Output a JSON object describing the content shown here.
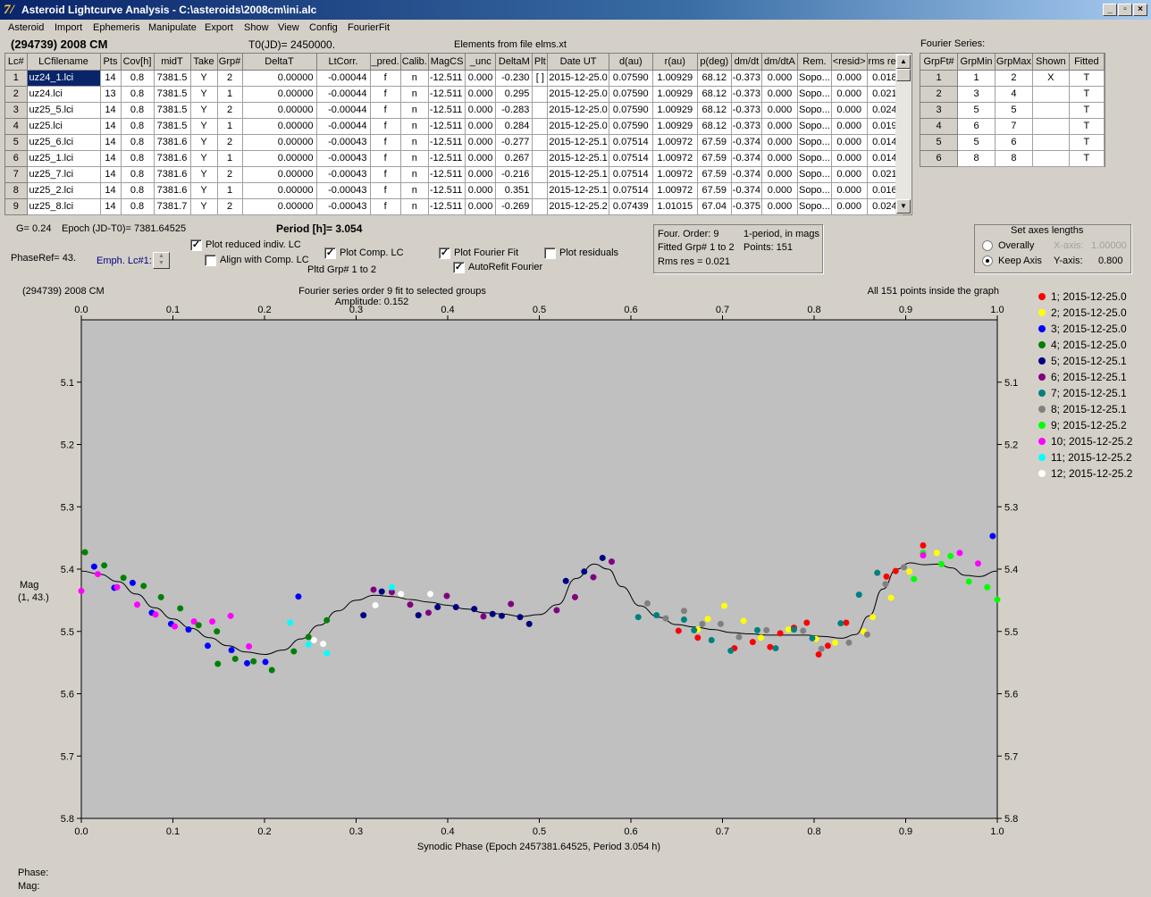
{
  "window": {
    "title": "Asteroid Lightcurve Analysis - C:\\asteroids\\2008cm\\ini.alc",
    "min": "_",
    "max": "▫",
    "close": "×"
  },
  "menu": [
    "Asteroid",
    "Import",
    "Ephemeris",
    "Manipulate",
    "Export",
    "Show",
    "View",
    "Config",
    "FourierFit"
  ],
  "info": {
    "asteroid": "(294739) 2008 CM",
    "t0": "T0(JD)= 2450000.",
    "elements": "Elements from file elms.xt",
    "fourier_title": "Fourier Series:"
  },
  "lc_table": {
    "headers": [
      "Lc#",
      "LCfilename",
      "Pts",
      "Cov[h]",
      "midT",
      "Take",
      "Grp#",
      "DeltaT",
      "LtCorr.",
      "_pred.",
      "Calib.",
      "MagCS",
      "_unc",
      "DeltaM",
      "Plt",
      "Date UT",
      "d(au)",
      "r(au)",
      "p(deg)",
      "dm/dt",
      "dm/dtA",
      "Rem.",
      "<resid>",
      "rms res"
    ],
    "rows": [
      [
        "1",
        "uz24_1.lci",
        "14",
        "0.8",
        "7381.5",
        "Y",
        "2",
        "0.00000",
        "-0.00044",
        "f",
        "n",
        "-12.511",
        "0.000",
        "-0.230",
        "[ ]",
        "2015-12-25.0",
        "0.07590",
        "1.00929",
        "68.12",
        "-0.373",
        "0.000",
        "Sopo...",
        "0.000",
        "0.018"
      ],
      [
        "2",
        "uz24.lci",
        "13",
        "0.8",
        "7381.5",
        "Y",
        "1",
        "0.00000",
        "-0.00044",
        "f",
        "n",
        "-12.511",
        "0.000",
        "0.295",
        "",
        "2015-12-25.0",
        "0.07590",
        "1.00929",
        "68.12",
        "-0.373",
        "0.000",
        "Sopo...",
        "0.000",
        "0.021"
      ],
      [
        "3",
        "uz25_5.lci",
        "14",
        "0.8",
        "7381.5",
        "Y",
        "2",
        "0.00000",
        "-0.00044",
        "f",
        "n",
        "-12.511",
        "0.000",
        "-0.283",
        "",
        "2015-12-25.0",
        "0.07590",
        "1.00929",
        "68.12",
        "-0.373",
        "0.000",
        "Sopo...",
        "0.000",
        "0.024"
      ],
      [
        "4",
        "uz25.lci",
        "14",
        "0.8",
        "7381.5",
        "Y",
        "1",
        "0.00000",
        "-0.00044",
        "f",
        "n",
        "-12.511",
        "0.000",
        "0.284",
        "",
        "2015-12-25.0",
        "0.07590",
        "1.00929",
        "68.12",
        "-0.373",
        "0.000",
        "Sopo...",
        "0.000",
        "0.019"
      ],
      [
        "5",
        "uz25_6.lci",
        "14",
        "0.8",
        "7381.6",
        "Y",
        "2",
        "0.00000",
        "-0.00043",
        "f",
        "n",
        "-12.511",
        "0.000",
        "-0.277",
        "",
        "2015-12-25.1",
        "0.07514",
        "1.00972",
        "67.59",
        "-0.374",
        "0.000",
        "Sopo...",
        "0.000",
        "0.014"
      ],
      [
        "6",
        "uz25_1.lci",
        "14",
        "0.8",
        "7381.6",
        "Y",
        "1",
        "0.00000",
        "-0.00043",
        "f",
        "n",
        "-12.511",
        "0.000",
        "0.267",
        "",
        "2015-12-25.1",
        "0.07514",
        "1.00972",
        "67.59",
        "-0.374",
        "0.000",
        "Sopo...",
        "0.000",
        "0.014"
      ],
      [
        "7",
        "uz25_7.lci",
        "14",
        "0.8",
        "7381.6",
        "Y",
        "2",
        "0.00000",
        "-0.00043",
        "f",
        "n",
        "-12.511",
        "0.000",
        "-0.216",
        "",
        "2015-12-25.1",
        "0.07514",
        "1.00972",
        "67.59",
        "-0.374",
        "0.000",
        "Sopo...",
        "0.000",
        "0.021"
      ],
      [
        "8",
        "uz25_2.lci",
        "14",
        "0.8",
        "7381.6",
        "Y",
        "1",
        "0.00000",
        "-0.00043",
        "f",
        "n",
        "-12.511",
        "0.000",
        "0.351",
        "",
        "2015-12-25.1",
        "0.07514",
        "1.00972",
        "67.59",
        "-0.374",
        "0.000",
        "Sopo...",
        "0.000",
        "0.016"
      ],
      [
        "9",
        "uz25_8.lci",
        "14",
        "0.8",
        "7381.7",
        "Y",
        "2",
        "0.00000",
        "-0.00043",
        "f",
        "n",
        "-12.511",
        "0.000",
        "-0.269",
        "",
        "2015-12-25.2",
        "0.07439",
        "1.01015",
        "67.04",
        "-0.375",
        "0.000",
        "Sopo...",
        "0.000",
        "0.024"
      ]
    ]
  },
  "fourier_table": {
    "headers": [
      "GrpFt#",
      "GrpMin",
      "GrpMax",
      "Shown",
      "Fitted"
    ],
    "rows": [
      [
        "1",
        "1",
        "2",
        "X",
        "T"
      ],
      [
        "2",
        "3",
        "4",
        "",
        "T"
      ],
      [
        "3",
        "5",
        "5",
        "",
        "T"
      ],
      [
        "4",
        "6",
        "7",
        "",
        "T"
      ],
      [
        "5",
        "5",
        "6",
        "",
        "T"
      ],
      [
        "6",
        "8",
        "8",
        "",
        "T"
      ]
    ]
  },
  "controls": {
    "g": "G= 0.24",
    "epoch": "Epoch (JD-T0)= 7381.64525",
    "period": "Period [h]= 3.054",
    "phaseref": "PhaseRef= 43.",
    "emph": "Emph. Lc#1:",
    "cb_reduced": "Plot reduced indiv. LC",
    "cb_align": "Align with Comp. LC",
    "cb_comp": "Plot Comp. LC",
    "pltd": "Pltd Grp#  1   to   2",
    "cb_fourier": "Plot Fourier Fit",
    "cb_autorefit": "AutoRefit Fourier",
    "cb_resid": "Plot residuals",
    "cb_reduced_checked": true,
    "cb_align_checked": false,
    "cb_comp_checked": true,
    "cb_fourier_checked": true,
    "cb_autorefit_checked": true,
    "cb_resid_checked": false
  },
  "fourier_info": {
    "order": "Four. Order:  9",
    "mode": "1-period, in mags",
    "fitted": "Fitted Grp# 1 to 2",
    "points": "Points: 151",
    "rms": "Rms res     = 0.021"
  },
  "axes_box": {
    "title": "Set axes lengths",
    "overally": "Overally",
    "keep": "Keep Axis",
    "xaxis_label": "X-axis:",
    "xaxis_val": "1.00000",
    "yaxis_label": "Y-axis:",
    "yaxis_val": "0.800",
    "selected": "keep"
  },
  "plot": {
    "left_title": "(294739) 2008 CM",
    "center_title": "Fourier series order 9 fit to selected groups",
    "amplitude": "Amplitude: 0.152",
    "right_note": "All 151 points inside the graph",
    "ylabel1": "Mag",
    "ylabel2": "(1, 43.)",
    "xlabel": "Synodic Phase (Epoch 2457381.64525, Period 3.054 h)",
    "status_phase": "Phase:",
    "status_mag": "Mag:"
  },
  "chart_data": {
    "type": "scatter",
    "title": "Fourier series order 9 fit to selected groups",
    "xlabel": "Synodic Phase (Epoch 2457381.64525, Period 3.054 h)",
    "ylabel": "Mag",
    "xlim": [
      0.0,
      1.0
    ],
    "ylim": [
      5.0,
      5.8
    ],
    "y_inverted": true,
    "xticks": [
      "0.0",
      "0.1",
      "0.2",
      "0.3",
      "0.4",
      "0.5",
      "0.6",
      "0.7",
      "0.8",
      "0.9",
      "1.0"
    ],
    "yticks": [
      "5.1",
      "5.2",
      "5.3",
      "5.4",
      "5.5",
      "5.6",
      "5.7",
      "5.8"
    ],
    "background": "#c0c0c0",
    "series": [
      {
        "name": "1; 2015-12-25.0",
        "color": "#ff0000",
        "points": [
          [
            0.652,
            5.499
          ],
          [
            0.673,
            5.51
          ],
          [
            0.713,
            5.527
          ],
          [
            0.733,
            5.517
          ],
          [
            0.752,
            5.525
          ],
          [
            0.763,
            5.503
          ],
          [
            0.778,
            5.494
          ],
          [
            0.792,
            5.486
          ],
          [
            0.805,
            5.537
          ],
          [
            0.815,
            5.523
          ],
          [
            0.835,
            5.486
          ],
          [
            0.879,
            5.412
          ],
          [
            0.889,
            5.403
          ],
          [
            0.919,
            5.362
          ]
        ]
      },
      {
        "name": "2; 2015-12-25.0",
        "color": "#ffff00",
        "points": [
          [
            0.673,
            5.497
          ],
          [
            0.684,
            5.48
          ],
          [
            0.702,
            5.459
          ],
          [
            0.723,
            5.483
          ],
          [
            0.742,
            5.51
          ],
          [
            0.772,
            5.497
          ],
          [
            0.802,
            5.512
          ],
          [
            0.823,
            5.518
          ],
          [
            0.854,
            5.5
          ],
          [
            0.864,
            5.477
          ],
          [
            0.884,
            5.446
          ],
          [
            0.904,
            5.404
          ],
          [
            0.934,
            5.374
          ]
        ]
      },
      {
        "name": "3; 2015-12-25.0",
        "color": "#0000ff",
        "points": [
          [
            0.014,
            5.396
          ],
          [
            0.036,
            5.43
          ],
          [
            0.056,
            5.422
          ],
          [
            0.077,
            5.47
          ],
          [
            0.098,
            5.488
          ],
          [
            0.117,
            5.497
          ],
          [
            0.138,
            5.523
          ],
          [
            0.164,
            5.53
          ],
          [
            0.181,
            5.551
          ],
          [
            0.201,
            5.549
          ],
          [
            0.237,
            5.444
          ],
          [
            0.995,
            5.347
          ]
        ]
      },
      {
        "name": "4; 2015-12-25.0",
        "color": "#008000",
        "points": [
          [
            0.004,
            5.373
          ],
          [
            0.025,
            5.394
          ],
          [
            0.046,
            5.414
          ],
          [
            0.068,
            5.427
          ],
          [
            0.087,
            5.445
          ],
          [
            0.108,
            5.463
          ],
          [
            0.128,
            5.49
          ],
          [
            0.148,
            5.5
          ],
          [
            0.149,
            5.552
          ],
          [
            0.168,
            5.544
          ],
          [
            0.188,
            5.548
          ],
          [
            0.208,
            5.562
          ],
          [
            0.232,
            5.532
          ],
          [
            0.248,
            5.509
          ],
          [
            0.268,
            5.482
          ]
        ]
      },
      {
        "name": "5; 2015-12-25.1",
        "color": "#000080",
        "points": [
          [
            0.308,
            5.474
          ],
          [
            0.328,
            5.436
          ],
          [
            0.368,
            5.474
          ],
          [
            0.389,
            5.461
          ],
          [
            0.409,
            5.461
          ],
          [
            0.429,
            5.464
          ],
          [
            0.449,
            5.472
          ],
          [
            0.459,
            5.475
          ],
          [
            0.479,
            5.477
          ],
          [
            0.489,
            5.488
          ],
          [
            0.529,
            5.419
          ],
          [
            0.549,
            5.404
          ],
          [
            0.569,
            5.382
          ]
        ]
      },
      {
        "name": "6; 2015-12-25.1",
        "color": "#800080",
        "points": [
          [
            0.319,
            5.433
          ],
          [
            0.339,
            5.437
          ],
          [
            0.359,
            5.457
          ],
          [
            0.379,
            5.47
          ],
          [
            0.399,
            5.443
          ],
          [
            0.439,
            5.476
          ],
          [
            0.469,
            5.456
          ],
          [
            0.519,
            5.466
          ],
          [
            0.539,
            5.445
          ],
          [
            0.559,
            5.413
          ],
          [
            0.579,
            5.388
          ]
        ]
      },
      {
        "name": "7; 2015-12-25.1",
        "color": "#008080",
        "points": [
          [
            0.608,
            5.477
          ],
          [
            0.628,
            5.474
          ],
          [
            0.658,
            5.481
          ],
          [
            0.669,
            5.498
          ],
          [
            0.688,
            5.514
          ],
          [
            0.709,
            5.531
          ],
          [
            0.738,
            5.498
          ],
          [
            0.758,
            5.527
          ],
          [
            0.778,
            5.497
          ],
          [
            0.798,
            5.511
          ],
          [
            0.829,
            5.487
          ],
          [
            0.849,
            5.441
          ],
          [
            0.869,
            5.406
          ]
        ]
      },
      {
        "name": "8; 2015-12-25.1",
        "color": "#808080",
        "points": [
          [
            0.618,
            5.455
          ],
          [
            0.638,
            5.479
          ],
          [
            0.658,
            5.467
          ],
          [
            0.678,
            5.488
          ],
          [
            0.698,
            5.488
          ],
          [
            0.718,
            5.509
          ],
          [
            0.748,
            5.498
          ],
          [
            0.788,
            5.499
          ],
          [
            0.808,
            5.528
          ],
          [
            0.838,
            5.518
          ],
          [
            0.858,
            5.505
          ],
          [
            0.878,
            5.424
          ],
          [
            0.898,
            5.397
          ]
        ]
      },
      {
        "name": "9; 2015-12-25.2",
        "color": "#00ff00",
        "points": [
          [
            0.919,
            5.374
          ],
          [
            0.939,
            5.392
          ],
          [
            0.949,
            5.379
          ],
          [
            0.969,
            5.42
          ],
          [
            0.989,
            5.429
          ],
          [
            1.0,
            5.449
          ],
          [
            0.909,
            5.416
          ]
        ]
      },
      {
        "name": "10; 2015-12-25.2",
        "color": "#ff00ff",
        "points": [
          [
            0.0,
            5.435
          ],
          [
            0.018,
            5.408
          ],
          [
            0.039,
            5.429
          ],
          [
            0.061,
            5.457
          ],
          [
            0.081,
            5.473
          ],
          [
            0.102,
            5.492
          ],
          [
            0.123,
            5.484
          ],
          [
            0.143,
            5.484
          ],
          [
            0.163,
            5.475
          ],
          [
            0.183,
            5.524
          ],
          [
            0.919,
            5.378
          ],
          [
            0.959,
            5.374
          ],
          [
            0.979,
            5.391
          ]
        ]
      },
      {
        "name": "11; 2015-12-25.2",
        "color": "#00ffff",
        "points": [
          [
            0.228,
            5.486
          ],
          [
            0.248,
            5.521
          ],
          [
            0.268,
            5.535
          ],
          [
            0.339,
            5.429
          ]
        ]
      },
      {
        "name": "12; 2015-12-25.2",
        "color": "#ffffff",
        "points": [
          [
            0.254,
            5.514
          ],
          [
            0.264,
            5.52
          ],
          [
            0.321,
            5.458
          ],
          [
            0.349,
            5.44
          ],
          [
            0.381,
            5.44
          ]
        ]
      }
    ],
    "fit_curve": [
      [
        0.0,
        5.403
      ],
      [
        0.02,
        5.408
      ],
      [
        0.04,
        5.42
      ],
      [
        0.06,
        5.44
      ],
      [
        0.08,
        5.462
      ],
      [
        0.1,
        5.48
      ],
      [
        0.12,
        5.495
      ],
      [
        0.14,
        5.51
      ],
      [
        0.16,
        5.523
      ],
      [
        0.18,
        5.533
      ],
      [
        0.2,
        5.537
      ],
      [
        0.22,
        5.53
      ],
      [
        0.24,
        5.512
      ],
      [
        0.26,
        5.49
      ],
      [
        0.28,
        5.467
      ],
      [
        0.3,
        5.45
      ],
      [
        0.32,
        5.442
      ],
      [
        0.34,
        5.444
      ],
      [
        0.36,
        5.449
      ],
      [
        0.38,
        5.453
      ],
      [
        0.4,
        5.458
      ],
      [
        0.42,
        5.464
      ],
      [
        0.44,
        5.47
      ],
      [
        0.46,
        5.472
      ],
      [
        0.48,
        5.476
      ],
      [
        0.5,
        5.473
      ],
      [
        0.52,
        5.457
      ],
      [
        0.54,
        5.415
      ],
      [
        0.56,
        5.392
      ],
      [
        0.575,
        5.4
      ],
      [
        0.59,
        5.428
      ],
      [
        0.61,
        5.459
      ],
      [
        0.63,
        5.477
      ],
      [
        0.65,
        5.489
      ],
      [
        0.67,
        5.493
      ],
      [
        0.69,
        5.497
      ],
      [
        0.71,
        5.502
      ],
      [
        0.73,
        5.504
      ],
      [
        0.75,
        5.506
      ],
      [
        0.77,
        5.506
      ],
      [
        0.79,
        5.506
      ],
      [
        0.81,
        5.508
      ],
      [
        0.83,
        5.511
      ],
      [
        0.845,
        5.505
      ],
      [
        0.86,
        5.475
      ],
      [
        0.875,
        5.432
      ],
      [
        0.89,
        5.4
      ],
      [
        0.905,
        5.39
      ],
      [
        0.92,
        5.393
      ],
      [
        0.935,
        5.392
      ],
      [
        0.95,
        5.398
      ],
      [
        0.965,
        5.41
      ],
      [
        0.98,
        5.412
      ],
      [
        1.0,
        5.403
      ]
    ]
  }
}
